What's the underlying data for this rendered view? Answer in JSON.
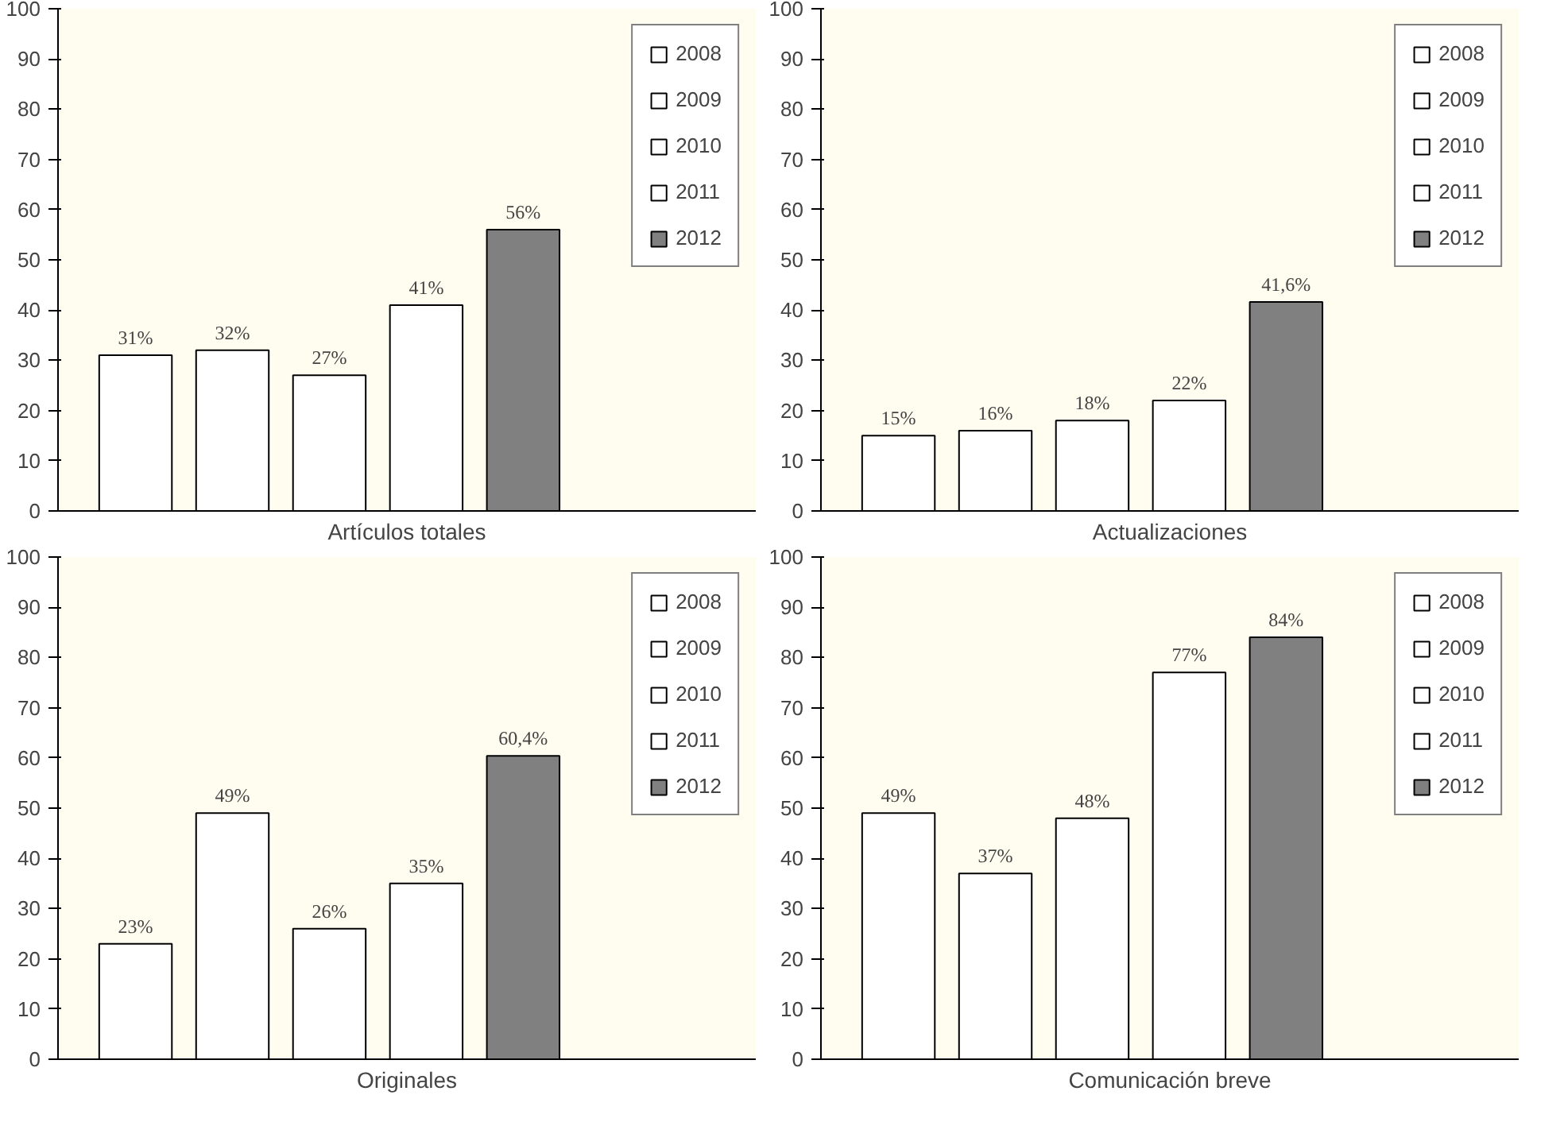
{
  "chart_data": [
    {
      "type": "bar",
      "xlabel": "Artículos totales",
      "categories": [
        null
      ],
      "series": [
        {
          "name": "2008",
          "color": "#ffffff",
          "values": [
            31
          ],
          "value_labels": [
            "31%"
          ]
        },
        {
          "name": "2009",
          "color": "#ffffff",
          "values": [
            32
          ],
          "value_labels": [
            "32%"
          ]
        },
        {
          "name": "2010",
          "color": "#ffffff",
          "values": [
            27
          ],
          "value_labels": [
            "27%"
          ]
        },
        {
          "name": "2011",
          "color": "#ffffff",
          "values": [
            41
          ],
          "value_labels": [
            "41%"
          ]
        },
        {
          "name": "2012",
          "color": "#808080",
          "values": [
            56
          ],
          "value_labels": [
            "56%"
          ]
        }
      ],
      "ylim": [
        0,
        100
      ],
      "yticks": [
        0,
        10,
        20,
        30,
        40,
        50,
        60,
        70,
        80,
        90,
        100
      ],
      "tick_labels": "y",
      "legend": "right",
      "grid": false
    },
    {
      "type": "bar",
      "xlabel": "Actualizaciones",
      "categories": [
        null
      ],
      "series": [
        {
          "name": "2008",
          "color": "#ffffff",
          "values": [
            15
          ],
          "value_labels": [
            "15%"
          ]
        },
        {
          "name": "2009",
          "color": "#ffffff",
          "values": [
            16
          ],
          "value_labels": [
            "16%"
          ]
        },
        {
          "name": "2010",
          "color": "#ffffff",
          "values": [
            18
          ],
          "value_labels": [
            "18%"
          ]
        },
        {
          "name": "2011",
          "color": "#ffffff",
          "values": [
            22
          ],
          "value_labels": [
            "22%"
          ]
        },
        {
          "name": "2012",
          "color": "#808080",
          "values": [
            41.6
          ],
          "value_labels": [
            "41,6%"
          ]
        }
      ],
      "ylim": [
        0,
        100
      ],
      "yticks": [
        0,
        10,
        20,
        30,
        40,
        50,
        60,
        70,
        80,
        90,
        100
      ],
      "tick_labels": "y",
      "legend": "right",
      "grid": false
    },
    {
      "type": "bar",
      "xlabel": "Originales",
      "categories": [
        null
      ],
      "series": [
        {
          "name": "2008",
          "color": "#ffffff",
          "values": [
            23
          ],
          "value_labels": [
            "23%"
          ]
        },
        {
          "name": "2009",
          "color": "#ffffff",
          "values": [
            49
          ],
          "value_labels": [
            "49%"
          ]
        },
        {
          "name": "2010",
          "color": "#ffffff",
          "values": [
            26
          ],
          "value_labels": [
            "26%"
          ]
        },
        {
          "name": "2011",
          "color": "#ffffff",
          "values": [
            35
          ],
          "value_labels": [
            "35%"
          ]
        },
        {
          "name": "2012",
          "color": "#808080",
          "values": [
            60.4
          ],
          "value_labels": [
            "60,4%"
          ]
        }
      ],
      "ylim": [
        0,
        100
      ],
      "yticks": [
        0,
        10,
        20,
        30,
        40,
        50,
        60,
        70,
        80,
        90,
        100
      ],
      "tick_labels": "y",
      "legend": "right",
      "grid": false
    },
    {
      "type": "bar",
      "xlabel": "Comunicación breve",
      "categories": [
        null
      ],
      "series": [
        {
          "name": "2008",
          "color": "#ffffff",
          "values": [
            49
          ],
          "value_labels": [
            "49%"
          ]
        },
        {
          "name": "2009",
          "color": "#ffffff",
          "values": [
            37
          ],
          "value_labels": [
            "37%"
          ]
        },
        {
          "name": "2010",
          "color": "#ffffff",
          "values": [
            48
          ],
          "value_labels": [
            "48%"
          ]
        },
        {
          "name": "2011",
          "color": "#ffffff",
          "values": [
            77
          ],
          "value_labels": [
            "77%"
          ]
        },
        {
          "name": "2012",
          "color": "#808080",
          "values": [
            84
          ],
          "value_labels": [
            "84%"
          ]
        }
      ],
      "ylim": [
        0,
        100
      ],
      "yticks": [
        0,
        10,
        20,
        30,
        40,
        50,
        60,
        70,
        80,
        90,
        100
      ],
      "tick_labels": "y",
      "legend": "right",
      "grid": false
    }
  ]
}
